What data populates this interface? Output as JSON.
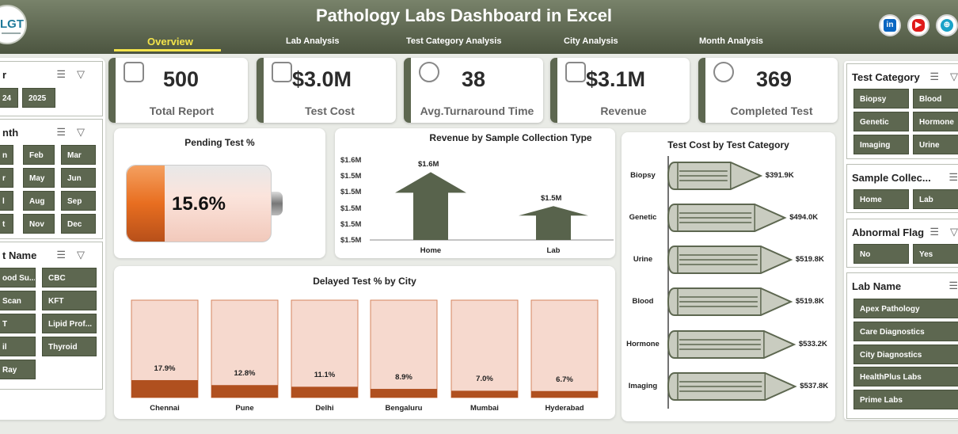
{
  "header": {
    "title": "Pathology Labs Dashboard in Excel",
    "logo_text": "LGT"
  },
  "tabs": [
    {
      "label": "Overview"
    },
    {
      "label": "Lab Analysis"
    },
    {
      "label": "Test Category Analysis"
    },
    {
      "label": "City Analysis"
    },
    {
      "label": "Month Analysis"
    }
  ],
  "social": {
    "linkedin": "in",
    "youtube": "▶",
    "web": "⊕"
  },
  "kpis": [
    {
      "value": "500",
      "label": "Total Report"
    },
    {
      "value": "$3.0M",
      "label": "Test Cost"
    },
    {
      "value": "38",
      "label": "Avg.Turnaround Time"
    },
    {
      "value": "$3.1M",
      "label": "Revenue"
    },
    {
      "value": "369",
      "label": "Completed Test"
    }
  ],
  "left_slicers": {
    "year": {
      "title": "r",
      "items": [
        "24",
        "2025"
      ]
    },
    "month": {
      "title": "nth",
      "items": [
        "n",
        "Feb",
        "Mar",
        "r",
        "May",
        "Jun",
        "l",
        "Aug",
        "Sep",
        "t",
        "Nov",
        "Dec"
      ]
    },
    "test_name": {
      "title": "t Name",
      "items": [
        "ood Su...",
        "CBC",
        "Scan",
        "KFT",
        "T",
        "Lipid Prof...",
        "il",
        "Thyroid",
        "Ray"
      ]
    }
  },
  "right_slicers": {
    "test_category": {
      "title": "Test Category",
      "items": [
        "Biopsy",
        "Blood",
        "Genetic",
        "Hormone",
        "Imaging",
        "Urine"
      ]
    },
    "sample": {
      "title": "Sample Collec...",
      "items": [
        "Home",
        "Lab"
      ]
    },
    "abnormal": {
      "title": "Abnormal Flag",
      "items": [
        "No",
        "Yes"
      ]
    },
    "lab": {
      "title": "Lab Name",
      "items": [
        "Apex Pathology",
        "Care Diagnostics",
        "City Diagnostics",
        "HealthPlus Labs",
        "Prime Labs"
      ]
    }
  },
  "pending": {
    "title": "Pending Test %",
    "value": "15.6%",
    "fraction": 0.156
  },
  "chart_data": [
    {
      "type": "bar",
      "title": "Revenue by Sample Collection Type",
      "categories": [
        "Home",
        "Lab"
      ],
      "values": [
        1.6,
        1.5
      ],
      "data_labels": [
        "$1.6M",
        "$1.5M"
      ],
      "y_ticks": [
        "$1.6M",
        "$1.5M",
        "$1.5M",
        "$1.5M",
        "$1.5M",
        "$1.5M"
      ]
    },
    {
      "type": "bar",
      "title": "Delayed Test % by City",
      "categories": [
        "Chennai",
        "Pune",
        "Delhi",
        "Bengaluru",
        "Mumbai",
        "Hyderabad"
      ],
      "values": [
        17.9,
        12.8,
        11.1,
        8.9,
        7.0,
        6.7
      ],
      "data_labels": [
        "17.9%",
        "12.8%",
        "11.1%",
        "8.9%",
        "7.0%",
        "6.7%"
      ]
    },
    {
      "type": "bar",
      "title": "Test Cost by Test Category",
      "categories": [
        "Biopsy",
        "Genetic",
        "Urine",
        "Blood",
        "Hormone",
        "Imaging"
      ],
      "values": [
        391.9,
        494.0,
        519.8,
        519.8,
        533.2,
        537.8
      ],
      "data_labels": [
        "$391.9K",
        "$494.0K",
        "$519.8K",
        "$519.8K",
        "$533.2K",
        "$537.8K"
      ]
    }
  ],
  "colors": {
    "olive": "#5d6750",
    "orange": "#b0501f",
    "light_peach": "#f6d9ce"
  }
}
